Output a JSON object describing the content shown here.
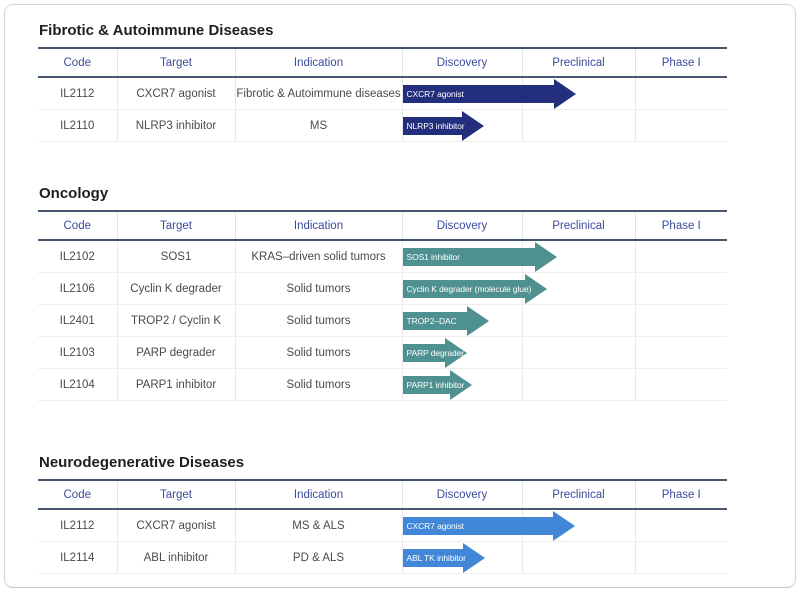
{
  "columns": [
    "Code",
    "Target",
    "Indication",
    "Discovery",
    "Preclinical",
    "Phase I"
  ],
  "colors": {
    "header_text": "#3b4b9d",
    "cell_text": "#4a4a4a",
    "heavy_border": "#46566e",
    "navy_arrow": "#232e7d",
    "teal_arrow": "#4f9190",
    "blue_arrow": "#4287d7"
  },
  "sections": [
    {
      "title": "Fibrotic & Autoimmune Diseases",
      "rows": [
        {
          "code": "IL2112",
          "target": "CXCR7 agonist",
          "indication": "Fibrotic & Autoimmune diseases",
          "arrow": {
            "label": "CXCR7 agonist",
            "color": "#232e7d",
            "length": 173
          }
        },
        {
          "code": "IL2110",
          "target": "NLRP3 inhibitor",
          "indication": "MS",
          "arrow": {
            "label": "NLRP3 inhibitor",
            "color": "#232e7d",
            "length": 81
          }
        }
      ]
    },
    {
      "title": "Oncology",
      "rows": [
        {
          "code": "IL2102",
          "target": "SOS1",
          "indication": "KRAS–driven solid tumors",
          "arrow": {
            "label": "SOS1 inhibitor",
            "color": "#4f9190",
            "length": 154
          }
        },
        {
          "code": "IL2106",
          "target": "Cyclin K degrader",
          "indication": "Solid tumors",
          "arrow": {
            "label": "Cyclin K degrader (molecule glue)",
            "color": "#4f9190",
            "length": 144
          }
        },
        {
          "code": "IL2401",
          "target": "TROP2 / Cyclin K",
          "indication": "Solid tumors",
          "arrow": {
            "label": "TROP2–DAC",
            "color": "#4f9190",
            "length": 86
          }
        },
        {
          "code": "IL2103",
          "target": "PARP degrader",
          "indication": "Solid tumors",
          "arrow": {
            "label": "PARP degrader",
            "color": "#4f9190",
            "length": 64
          }
        },
        {
          "code": "IL2104",
          "target": "PARP1 inhibitor",
          "indication": "Solid tumors",
          "arrow": {
            "label": "PARP1 inhibitor",
            "color": "#4f9190",
            "length": 69
          }
        }
      ]
    },
    {
      "title": "Neurodegenerative Diseases",
      "rows": [
        {
          "code": "IL2112",
          "target": "CXCR7 agonist",
          "indication": "MS & ALS",
          "arrow": {
            "label": "CXCR7 agonist",
            "color": "#4287d7",
            "length": 172
          }
        },
        {
          "code": "IL2114",
          "target": "ABL inhibitor",
          "indication": "PD & ALS",
          "arrow": {
            "label": "ABL TK inhibitor",
            "color": "#4287d7",
            "length": 82
          }
        }
      ]
    }
  ],
  "chart_data": [
    {
      "type": "bar",
      "title": "Fibrotic & Autoimmune Diseases",
      "categories": [
        "IL2112 CXCR7 agonist",
        "IL2110 NLRP3 inhibitor"
      ],
      "stages": [
        "Discovery",
        "Preclinical",
        "Phase I"
      ],
      "values_stage_units": [
        1.44,
        0.68
      ],
      "bar_labels": [
        "CXCR7 agonist",
        "NLRP3 inhibitor"
      ],
      "note": "1.0 = end of Discovery stage; arrows start at left edge of Discovery column"
    },
    {
      "type": "bar",
      "title": "Oncology",
      "categories": [
        "IL2102 SOS1",
        "IL2106 Cyclin K degrader",
        "IL2401 TROP2 / Cyclin K",
        "IL2103 PARP degrader",
        "IL2104 PARP1 inhibitor"
      ],
      "stages": [
        "Discovery",
        "Preclinical",
        "Phase I"
      ],
      "values_stage_units": [
        1.28,
        1.2,
        0.72,
        0.53,
        0.58
      ],
      "bar_labels": [
        "SOS1 inhibitor",
        "Cyclin K degrader (molecule glue)",
        "TROP2–DAC",
        "PARP degrader",
        "PARP1 inhibitor"
      ],
      "note": "1.0 = end of Discovery stage"
    },
    {
      "type": "bar",
      "title": "Neurodegenerative Diseases",
      "categories": [
        "IL2112 CXCR7 agonist",
        "IL2114 ABL inhibitor"
      ],
      "stages": [
        "Discovery",
        "Preclinical",
        "Phase I"
      ],
      "values_stage_units": [
        1.43,
        0.68
      ],
      "bar_labels": [
        "CXCR7 agonist",
        "ABL TK inhibitor"
      ],
      "note": "1.0 = end of Discovery stage"
    }
  ]
}
